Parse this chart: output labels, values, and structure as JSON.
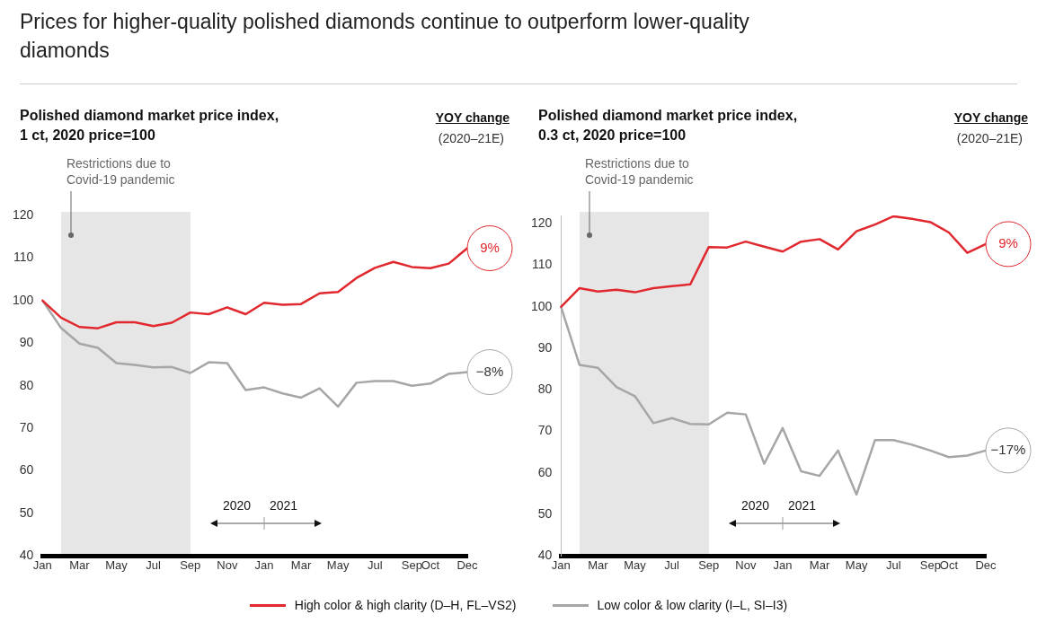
{
  "chart_data": [
    {
      "type": "line",
      "title": "Polished diamond market price index,\n1 ct, 2020 price=100",
      "categories": [
        "Jan",
        null,
        "Mar",
        null,
        "May",
        null,
        "Jul",
        null,
        "Sep",
        null,
        "Nov",
        null,
        "Jan",
        null,
        "Mar",
        null,
        "May",
        null,
        "Jul",
        null,
        "Sep",
        "Oct",
        null,
        "Dec"
      ],
      "series": [
        {
          "name": "High color & high clarity (D–H, FL–VS2)",
          "color": "#e0282e",
          "values": [
            100,
            96.0,
            93.8,
            93.5,
            94.9,
            94.9,
            94.0,
            94.8,
            97.2,
            96.8,
            98.4,
            96.8,
            99.5,
            99.0,
            99.2,
            101.7,
            102.0,
            105.3,
            107.7,
            109.1,
            107.9,
            107.6,
            108.7,
            112.3
          ]
        },
        {
          "name": "Low color & low clarity (I–L, SI–I3)",
          "color": "#a6a6a6",
          "values": [
            100,
            93.6,
            89.9,
            88.9,
            85.3,
            84.9,
            84.3,
            84.4,
            83.0,
            85.5,
            85.3,
            79.0,
            79.6,
            78.2,
            77.2,
            79.4,
            75.1,
            80.7,
            81.1,
            81.1,
            80.0,
            80.5,
            82.8,
            83.2
          ]
        }
      ],
      "ylim": [
        40,
        120
      ],
      "yticks": [
        40,
        50,
        60,
        70,
        80,
        90,
        100,
        110,
        120
      ],
      "annotations": [
        "Prices for higher-quality polished diamonds continue to outperform lower-quality diamonds",
        "Restrictions due to\nCovid-19 pandemic",
        "YOY change",
        "(2020–21E)",
        "2020",
        "2021",
        {
          "text": "9%",
          "x": "Dec",
          "y": 112.3
        },
        {
          "text": "−8%",
          "x": "Dec",
          "y": 83.2
        }
      ],
      "grid": false,
      "legend": "bottom",
      "marker": "none",
      "line_style": "solid"
    },
    {
      "type": "line",
      "title": "Polished diamond market price index,\n0.3 ct, 2020 price=100",
      "categories": [
        "Jan",
        null,
        "Mar",
        null,
        "May",
        null,
        "Jul",
        null,
        "Sep",
        null,
        "Nov",
        null,
        "Jan",
        null,
        "Mar",
        null,
        "May",
        null,
        "Jul",
        null,
        "Sep",
        "Oct",
        null,
        "Dec"
      ],
      "series": [
        {
          "color": "#e0282e",
          "values": [
            100,
            104.5,
            103.7,
            104.1,
            103.5,
            104.5,
            105.0,
            105.4,
            114.4,
            114.3,
            115.7,
            114.5,
            113.3,
            115.7,
            116.3,
            113.8,
            118.2,
            119.8,
            121.8,
            121.2,
            120.4,
            117.9,
            113.0,
            115.1
          ]
        },
        {
          "color": "#a6a6a6",
          "values": [
            100,
            86.0,
            85.3,
            80.7,
            78.5,
            72.0,
            73.2,
            71.8,
            71.7,
            74.5,
            74.1,
            62.2,
            70.8,
            60.4,
            59.3,
            65.4,
            54.8,
            67.9,
            67.9,
            66.8,
            65.4,
            63.8,
            64.2,
            65.4
          ]
        }
      ],
      "ylim": [
        40,
        122
      ],
      "yticks": [
        40,
        50,
        60,
        70,
        80,
        90,
        100,
        110,
        120
      ],
      "annotations": [
        "Restrictions due to\nCovid-19 pandemic",
        "YOY change",
        "(2020–21E)",
        "2020",
        "2021",
        {
          "text": "9%",
          "x": "Dec",
          "y": 115.1
        },
        {
          "text": "−17%",
          "x": "Dec",
          "y": 65.4
        }
      ],
      "grid": false,
      "marker": "none",
      "line_style": "solid"
    }
  ]
}
